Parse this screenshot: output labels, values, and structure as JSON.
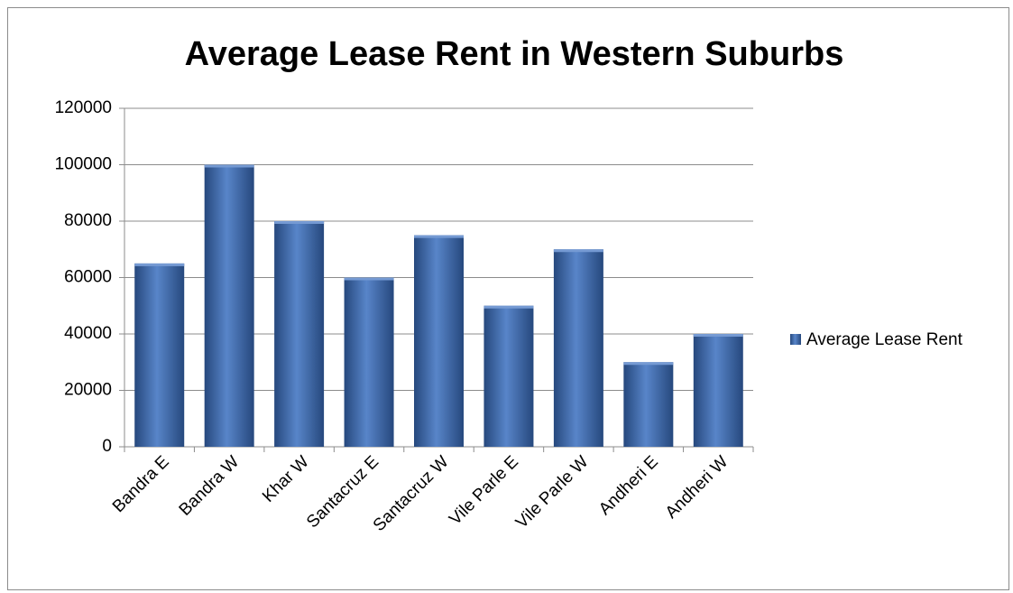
{
  "chart_data": {
    "type": "bar",
    "title": "Average Lease Rent in Western Suburbs",
    "categories": [
      "Bandra E",
      "Bandra W",
      "Khar W",
      "Santacruz E",
      "Santacruz W",
      "Vile Parle E",
      "Vile Parle W",
      "Andheri E",
      "Andheri W"
    ],
    "series": [
      {
        "name": "Average Lease Rent",
        "color": "#3a6fc0",
        "values": [
          65000,
          100000,
          80000,
          60000,
          75000,
          50000,
          70000,
          30000,
          40000
        ]
      }
    ],
    "ylim": [
      0,
      120000
    ],
    "yticks": [
      0,
      20000,
      40000,
      60000,
      80000,
      100000,
      120000
    ],
    "grid": true,
    "legend": "right"
  }
}
